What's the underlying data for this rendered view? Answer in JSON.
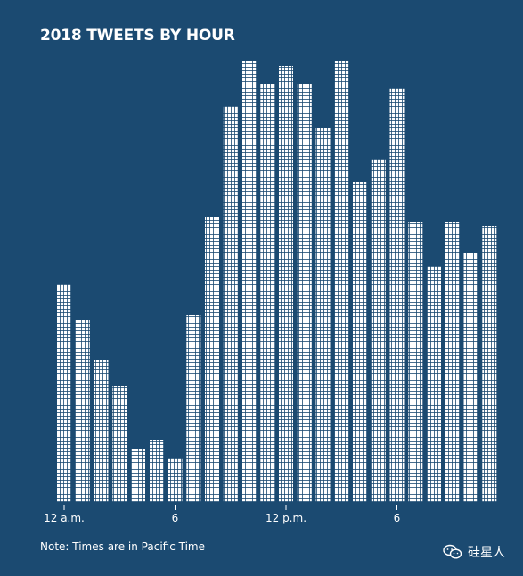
{
  "chart_data": {
    "type": "bar",
    "title": "2018 TWEETS BY HOUR",
    "xlabel": "",
    "ylabel": "",
    "x_tick_labels": [
      {
        "hour": 0,
        "label": "12 a.m."
      },
      {
        "hour": 6,
        "label": "6"
      },
      {
        "hour": 12,
        "label": "12 p.m."
      },
      {
        "hour": 18,
        "label": "6"
      }
    ],
    "hours": [
      0,
      1,
      2,
      3,
      4,
      5,
      6,
      7,
      8,
      9,
      10,
      11,
      12,
      13,
      14,
      15,
      16,
      17,
      18,
      19,
      20,
      21,
      22,
      23
    ],
    "values": [
      49,
      41,
      32,
      26,
      12,
      14,
      10,
      42,
      64,
      89,
      99,
      94,
      98,
      94,
      84,
      99,
      72,
      77,
      93,
      63,
      53,
      63,
      56,
      62
    ],
    "ylim": [
      0,
      100
    ],
    "grid": false,
    "legend": "none",
    "bar_style": "stacked-squares",
    "bar_color": "#ffffff",
    "background": "#1b4a71"
  },
  "note": "Note: Times are in Pacific Time",
  "watermark": {
    "text": "硅星人",
    "icon": "wechat-icon"
  }
}
